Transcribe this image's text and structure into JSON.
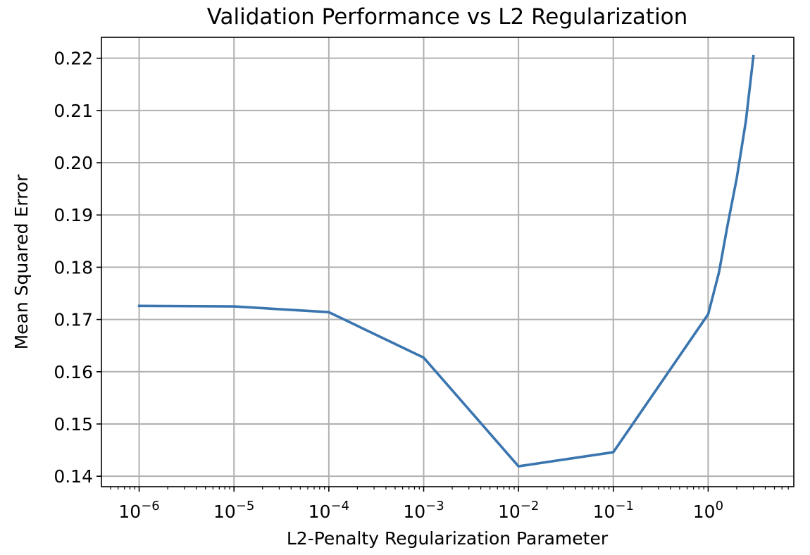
{
  "chart_data": {
    "type": "line",
    "title": "Validation Performance vs L2 Regularization",
    "xlabel": "L2-Penalty Regularization Parameter",
    "ylabel": "Mean Squared Error",
    "xscale": "log",
    "xlim": [
      4e-07,
      8
    ],
    "ylim": [
      0.138,
      0.224
    ],
    "grid": true,
    "line_color": "#3a75af",
    "x_ticks": [
      {
        "value": 1e-06,
        "base": "10",
        "exp": "−6"
      },
      {
        "value": 1e-05,
        "base": "10",
        "exp": "−5"
      },
      {
        "value": 0.0001,
        "base": "10",
        "exp": "−4"
      },
      {
        "value": 0.001,
        "base": "10",
        "exp": "−3"
      },
      {
        "value": 0.01,
        "base": "10",
        "exp": "−2"
      },
      {
        "value": 0.1,
        "base": "10",
        "exp": "−1"
      },
      {
        "value": 1,
        "base": "10",
        "exp": "0"
      }
    ],
    "y_ticks": [
      {
        "value": 0.14,
        "label": "0.14"
      },
      {
        "value": 0.15,
        "label": "0.15"
      },
      {
        "value": 0.16,
        "label": "0.16"
      },
      {
        "value": 0.17,
        "label": "0.17"
      },
      {
        "value": 0.18,
        "label": "0.18"
      },
      {
        "value": 0.19,
        "label": "0.19"
      },
      {
        "value": 0.2,
        "label": "0.20"
      },
      {
        "value": 0.21,
        "label": "0.21"
      },
      {
        "value": 0.22,
        "label": "0.22"
      }
    ],
    "series": [
      {
        "x": [
          1e-06,
          1e-05,
          0.0001,
          0.001,
          0.01,
          0.1,
          1,
          1.3,
          1.6,
          2.0,
          2.5,
          3.0
        ],
        "y": [
          0.1726,
          0.1725,
          0.1714,
          0.1627,
          0.1419,
          0.1446,
          0.171,
          0.179,
          0.188,
          0.197,
          0.208,
          0.2204
        ]
      }
    ]
  }
}
